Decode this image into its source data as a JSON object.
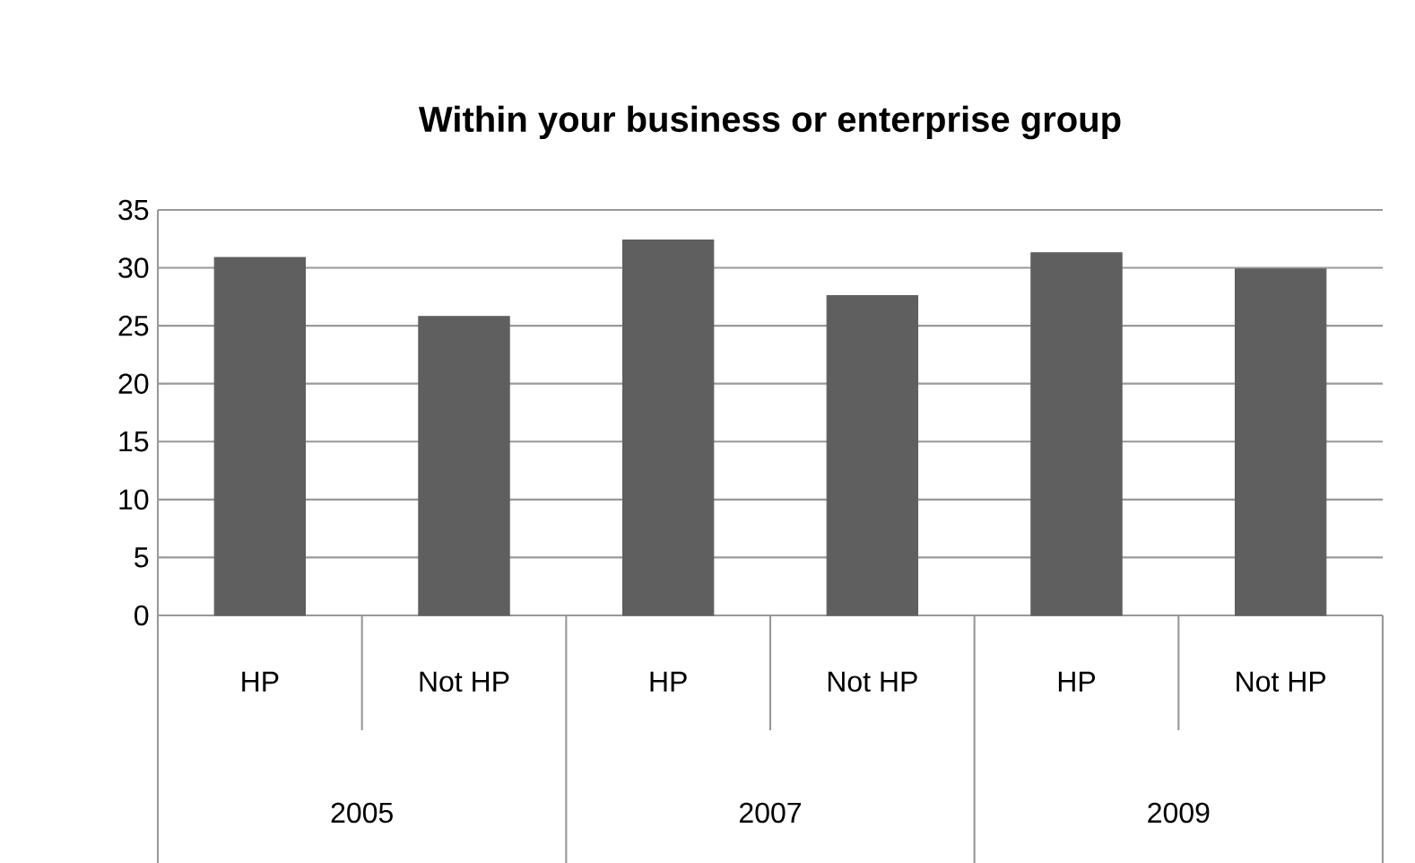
{
  "chart_data": {
    "type": "bar",
    "title": "Within your business or enterprise group",
    "categories": [
      "HP",
      "Not HP",
      "HP",
      "Not HP",
      "HP",
      "Not HP"
    ],
    "values": [
      30.9,
      25.8,
      32.4,
      27.6,
      31.3,
      29.9
    ],
    "color": "#5f5f5f",
    "ylim": [
      0,
      35
    ],
    "yticks": [
      0,
      5,
      10,
      15,
      20,
      25,
      30,
      35
    ],
    "grid": "y",
    "annotations": [
      "2005",
      "2007",
      "2009"
    ]
  }
}
